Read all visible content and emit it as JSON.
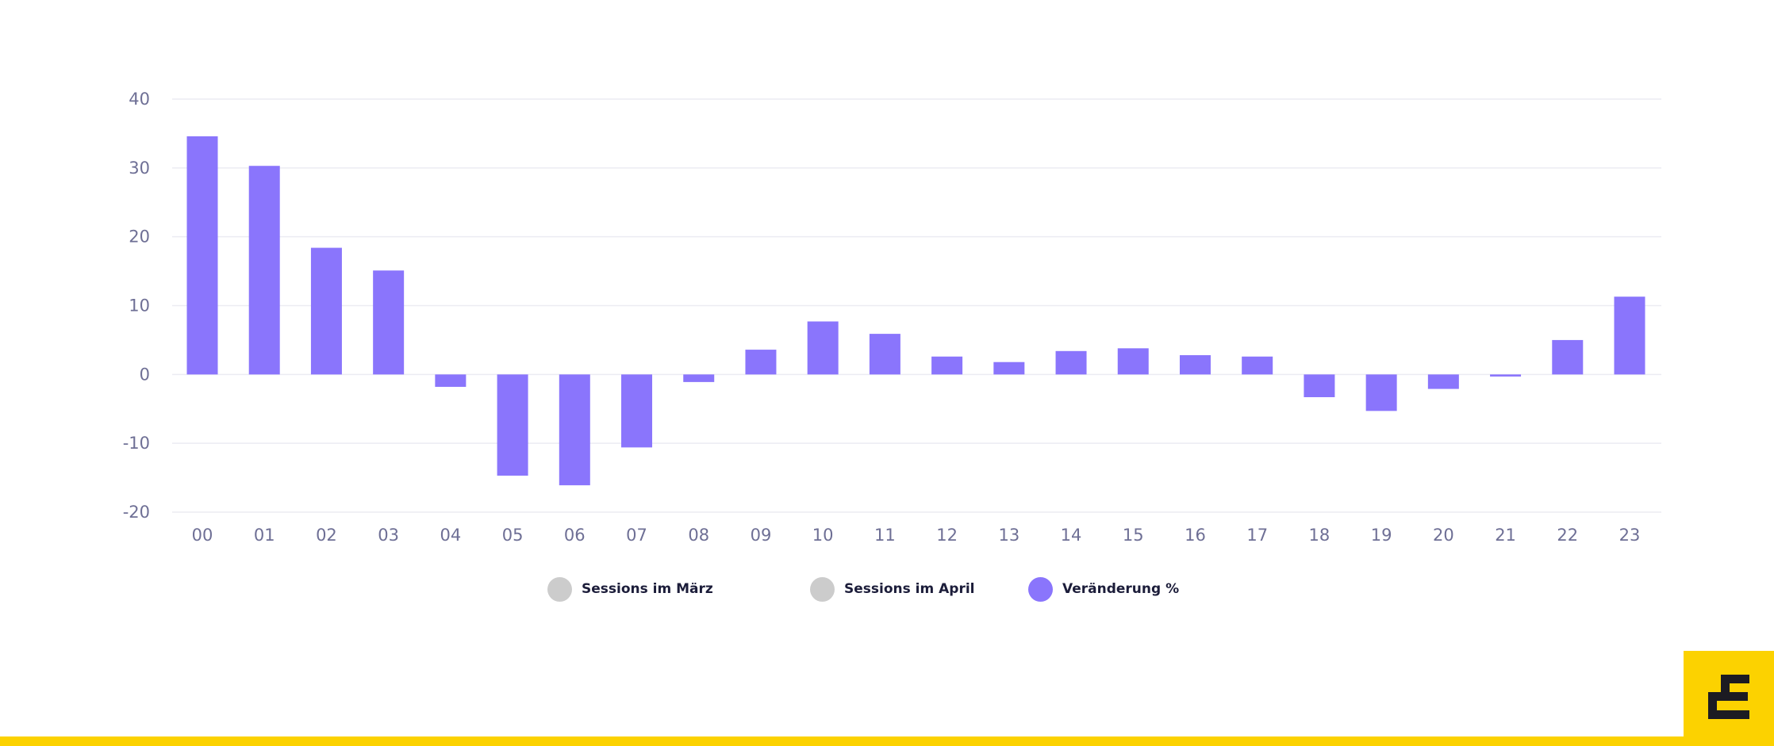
{
  "colors": {
    "bar": "#8a75fc",
    "gridline": "#ececf2",
    "tick_text": "#6e6f95",
    "legend_inactive": "#cccccc",
    "accent_yellow": "#fcd200",
    "logo_dark": "#1c1b22"
  },
  "legend": {
    "items": [
      {
        "label": "Sessions im März",
        "color": "#cccccc"
      },
      {
        "label": "Sessions im April",
        "color": "#cccccc"
      },
      {
        "label": "Veränderung %",
        "color": "#8a75fc"
      }
    ],
    "placement": "bottom-center"
  },
  "logo": {
    "icon": "brand-logo-icon"
  },
  "chart_data": {
    "type": "bar",
    "title": "",
    "xlabel": "",
    "ylabel": "",
    "ylim": [
      -20,
      40
    ],
    "yticks": [
      40,
      30,
      20,
      10,
      0,
      -10,
      -20
    ],
    "grid": true,
    "categories": [
      "00",
      "01",
      "02",
      "03",
      "04",
      "05",
      "06",
      "07",
      "08",
      "09",
      "10",
      "11",
      "12",
      "13",
      "14",
      "15",
      "16",
      "17",
      "18",
      "19",
      "20",
      "21",
      "22",
      "23"
    ],
    "series": [
      {
        "name": "Veränderung %",
        "values": [
          34.6,
          30.3,
          18.4,
          15.1,
          -1.8,
          -14.7,
          -16.1,
          -10.6,
          -1.1,
          3.6,
          7.7,
          5.9,
          2.6,
          1.8,
          3.4,
          3.8,
          2.8,
          2.6,
          -3.3,
          -5.3,
          -2.1,
          -0.3,
          5.0,
          11.3
        ]
      }
    ]
  }
}
